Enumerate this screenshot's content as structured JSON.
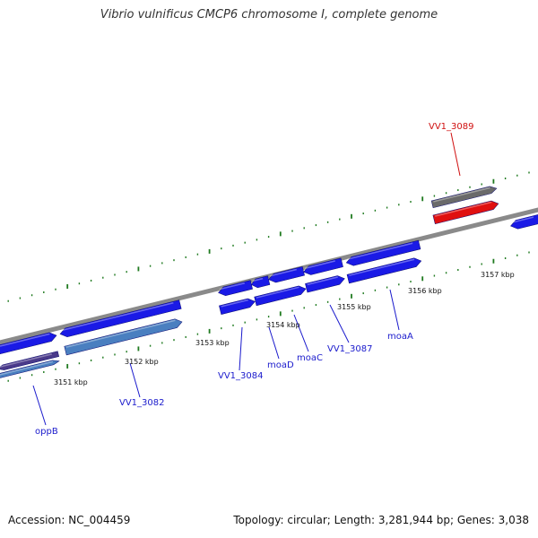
{
  "title": "Vibrio vulnificus CMCP6 chromosome I, complete genome",
  "accession": "Accession: NC_004459",
  "topology": "Topology: circular; Length: 3,281,944 bp; Genes: 3,038",
  "colors": {
    "forward_gene": "#1a1ae6",
    "reverse_gene": "#1a1ae6",
    "highlight_gene": "#e01010",
    "gray_gene": "#6a6a6a",
    "light_blue_gene": "#4a7fc0",
    "purple_gene": "#4a3a8a",
    "tick": "#1f7a1f",
    "backbone": "#8a8a8a",
    "label_blue": "#1a1acc",
    "label_red": "#d01010"
  },
  "kbp_labels": [
    "3151 kbp",
    "3152 kbp",
    "3153 kbp",
    "3154 kbp",
    "3155 kbp",
    "3156 kbp",
    "3157 kbp"
  ],
  "gene_labels": [
    "oppB",
    "VV1_3082",
    "VV1_3084",
    "moaD",
    "moaC",
    "VV1_3087",
    "moaA",
    "VV1_3089"
  ],
  "highlight_label": "VV1_3089"
}
